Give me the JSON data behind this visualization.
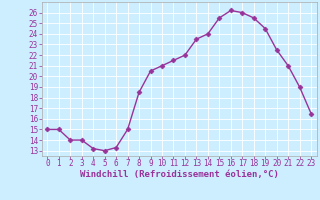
{
  "x": [
    0,
    1,
    2,
    3,
    4,
    5,
    6,
    7,
    8,
    9,
    10,
    11,
    12,
    13,
    14,
    15,
    16,
    17,
    18,
    19,
    20,
    21,
    22,
    23
  ],
  "y": [
    15,
    15,
    14,
    14,
    13.2,
    13,
    13.3,
    15,
    18.5,
    20.5,
    21,
    21.5,
    22,
    23.5,
    24,
    25.5,
    26.2,
    26,
    25.5,
    24.5,
    22.5,
    21,
    19,
    16.5
  ],
  "line_color": "#993399",
  "marker": "D",
  "marker_size": 2.5,
  "xlabel": "Windchill (Refroidissement éolien,°C)",
  "xlim": [
    -0.5,
    23.5
  ],
  "ylim": [
    12.5,
    27
  ],
  "yticks": [
    13,
    14,
    15,
    16,
    17,
    18,
    19,
    20,
    21,
    22,
    23,
    24,
    25,
    26
  ],
  "xticks": [
    0,
    1,
    2,
    3,
    4,
    5,
    6,
    7,
    8,
    9,
    10,
    11,
    12,
    13,
    14,
    15,
    16,
    17,
    18,
    19,
    20,
    21,
    22,
    23
  ],
  "bg_color": "#cceeff",
  "grid_color": "#bbdddd",
  "tick_color": "#993399",
  "label_color": "#993399",
  "font_size": 5.5,
  "xlabel_font_size": 6.5,
  "line_width": 1.0
}
